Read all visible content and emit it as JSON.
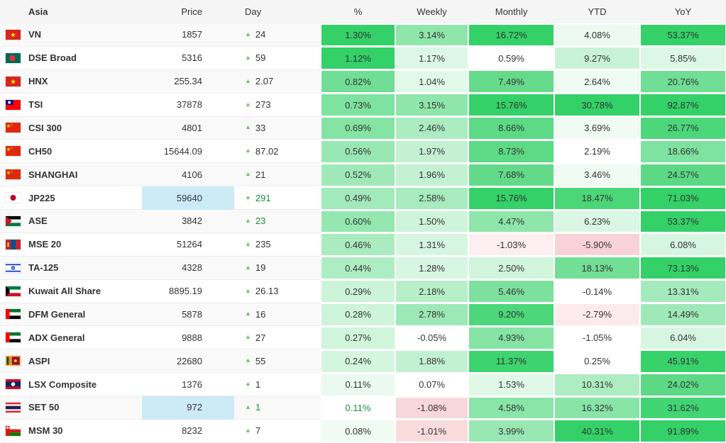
{
  "header": {
    "region": "Asia",
    "price": "Price",
    "day": "Day",
    "pct": "%",
    "weekly": "Weekly",
    "monthly": "Monthly",
    "ytd": "YTD",
    "yoy": "YoY"
  },
  "colors": {
    "accent_green_full": "#33d167",
    "accent_pink_full": "#f8d2d6",
    "flash_blue": "#cdeaf7",
    "flash_text_green": "#1e8e3e",
    "up_triangle": "#79c06f",
    "text": "#333333",
    "header_bg": "#f5f5f5",
    "stripe_bg": "#f9f9f9"
  },
  "icons": {
    "up_arrow": "triangle-up-icon"
  },
  "rows": [
    {
      "flag": "vietnam",
      "name": "VN",
      "price": "1857",
      "day": "24",
      "day_green": false,
      "price_flash": false,
      "pct": {
        "v": "1.30%",
        "bg": "#33d167",
        "green_text": false
      },
      "weekly": {
        "v": "3.14%",
        "bg": "#8fe6ab"
      },
      "monthly": {
        "v": "16.72%",
        "bg": "#33d167"
      },
      "ytd": {
        "v": "4.08%",
        "bg": "#ecfaf1"
      },
      "yoy": {
        "v": "53.37%",
        "bg": "#33d167"
      }
    },
    {
      "flag": "bangladesh",
      "name": "DSE Broad",
      "price": "5316",
      "day": "59",
      "day_green": false,
      "price_flash": false,
      "pct": {
        "v": "1.12%",
        "bg": "#33d167",
        "green_text": false
      },
      "weekly": {
        "v": "1.17%",
        "bg": "#dcf7e5"
      },
      "monthly": {
        "v": "0.59%",
        "bg": "#ffffff"
      },
      "ytd": {
        "v": "9.27%",
        "bg": "#c9f3d6"
      },
      "yoy": {
        "v": "5.85%",
        "bg": "#dcf7e5"
      }
    },
    {
      "flag": "vietnam",
      "name": "HNX",
      "price": "255.34",
      "day": "2.07",
      "day_green": false,
      "price_flash": false,
      "pct": {
        "v": "0.82%",
        "bg": "#71de96",
        "green_text": false
      },
      "weekly": {
        "v": "1.04%",
        "bg": "#e2f8e9"
      },
      "monthly": {
        "v": "7.49%",
        "bg": "#66da8b"
      },
      "ytd": {
        "v": "2.64%",
        "bg": "#eefbf3"
      },
      "yoy": {
        "v": "20.76%",
        "bg": "#70de95"
      }
    },
    {
      "flag": "taiwan",
      "name": "TSI",
      "price": "37878",
      "day": "273",
      "day_green": false,
      "price_flash": false,
      "pct": {
        "v": "0.73%",
        "bg": "#7ee2a0",
        "green_text": false
      },
      "weekly": {
        "v": "3.15%",
        "bg": "#8fe6ab"
      },
      "monthly": {
        "v": "15.76%",
        "bg": "#33d167"
      },
      "ytd": {
        "v": "30.78%",
        "bg": "#33d167"
      },
      "yoy": {
        "v": "92.87%",
        "bg": "#33d167"
      }
    },
    {
      "flag": "china",
      "name": "CSI 300",
      "price": "4801",
      "day": "33",
      "day_green": false,
      "price_flash": false,
      "pct": {
        "v": "0.69%",
        "bg": "#85e3a4",
        "green_text": false
      },
      "weekly": {
        "v": "2.46%",
        "bg": "#abecc1"
      },
      "monthly": {
        "v": "8.66%",
        "bg": "#5cda85"
      },
      "ytd": {
        "v": "3.69%",
        "bg": "#effbf3"
      },
      "yoy": {
        "v": "26.77%",
        "bg": "#4cd77a"
      }
    },
    {
      "flag": "china",
      "name": "CH50",
      "price": "15644.09",
      "day": "87.02",
      "day_green": false,
      "price_flash": false,
      "pct": {
        "v": "0.56%",
        "bg": "#99e8b3",
        "green_text": false
      },
      "weekly": {
        "v": "1.97%",
        "bg": "#c3f1d2"
      },
      "monthly": {
        "v": "8.73%",
        "bg": "#5cda85"
      },
      "ytd": {
        "v": "2.19%",
        "bg": "#ffffff"
      },
      "yoy": {
        "v": "18.66%",
        "bg": "#7ee2a0"
      }
    },
    {
      "flag": "china",
      "name": "SHANGHAI",
      "price": "4106",
      "day": "21",
      "day_green": false,
      "price_flash": false,
      "pct": {
        "v": "0.52%",
        "bg": "#9fe9b8",
        "green_text": false
      },
      "weekly": {
        "v": "1.96%",
        "bg": "#c3f1d2"
      },
      "monthly": {
        "v": "7.68%",
        "bg": "#63da89"
      },
      "ytd": {
        "v": "3.46%",
        "bg": "#effbf3"
      },
      "yoy": {
        "v": "24.57%",
        "bg": "#5bd984"
      }
    },
    {
      "flag": "japan",
      "name": "JP225",
      "price": "59640",
      "day": "291",
      "day_green": true,
      "price_flash": true,
      "pct": {
        "v": "0.49%",
        "bg": "#a3eabb",
        "green_text": false
      },
      "weekly": {
        "v": "2.58%",
        "bg": "#a7ebbe"
      },
      "monthly": {
        "v": "15.76%",
        "bg": "#33d167"
      },
      "ytd": {
        "v": "18.47%",
        "bg": "#4bd678"
      },
      "yoy": {
        "v": "71.03%",
        "bg": "#33d167"
      }
    },
    {
      "flag": "jordan",
      "name": "ASE",
      "price": "3842",
      "day": "23",
      "day_green": true,
      "price_flash": false,
      "pct": {
        "v": "0.60%",
        "bg": "#94e7af",
        "green_text": false
      },
      "weekly": {
        "v": "1.50%",
        "bg": "#cef4da"
      },
      "monthly": {
        "v": "4.47%",
        "bg": "#8fe6ab"
      },
      "ytd": {
        "v": "6.23%",
        "bg": "#d9f7e3"
      },
      "yoy": {
        "v": "53.37%",
        "bg": "#33d167"
      }
    },
    {
      "flag": "mongolia",
      "name": "MSE 20",
      "price": "51264",
      "day": "235",
      "day_green": false,
      "price_flash": false,
      "pct": {
        "v": "0.46%",
        "bg": "#aaecc0",
        "green_text": false
      },
      "weekly": {
        "v": "1.31%",
        "bg": "#d6f6e1"
      },
      "monthly": {
        "v": "-1.03%",
        "bg": "#fdeef0"
      },
      "ytd": {
        "v": "-5.90%",
        "bg": "#f8d2d6"
      },
      "yoy": {
        "v": "6.08%",
        "bg": "#d6f6e1"
      }
    },
    {
      "flag": "israel",
      "name": "TA-125",
      "price": "4328",
      "day": "19",
      "day_green": false,
      "price_flash": false,
      "pct": {
        "v": "0.44%",
        "bg": "#adedc2",
        "green_text": false
      },
      "weekly": {
        "v": "1.28%",
        "bg": "#d6f6e1"
      },
      "monthly": {
        "v": "2.50%",
        "bg": "#d0f5dc"
      },
      "ytd": {
        "v": "18.13%",
        "bg": "#72de96"
      },
      "yoy": {
        "v": "73.13%",
        "bg": "#33d167"
      }
    },
    {
      "flag": "kuwait",
      "name": "Kuwait All Share",
      "price": "8895.19",
      "day": "26.13",
      "day_green": false,
      "price_flash": false,
      "pct": {
        "v": "0.29%",
        "bg": "#ccf4d9",
        "green_text": false
      },
      "weekly": {
        "v": "2.18%",
        "bg": "#b6efc8"
      },
      "monthly": {
        "v": "5.46%",
        "bg": "#7ce19d"
      },
      "ytd": {
        "v": "-0.14%",
        "bg": "#ffffff"
      },
      "yoy": {
        "v": "13.31%",
        "bg": "#a5eabc"
      }
    },
    {
      "flag": "uae",
      "name": "DFM General",
      "price": "5878",
      "day": "16",
      "day_green": false,
      "price_flash": false,
      "pct": {
        "v": "0.28%",
        "bg": "#cef4da",
        "green_text": false
      },
      "weekly": {
        "v": "2.78%",
        "bg": "#9de9b6"
      },
      "monthly": {
        "v": "9.20%",
        "bg": "#4cd77a"
      },
      "ytd": {
        "v": "-2.79%",
        "bg": "#fceaec"
      },
      "yoy": {
        "v": "14.49%",
        "bg": "#9fe9b8"
      }
    },
    {
      "flag": "uae",
      "name": "ADX General",
      "price": "9888",
      "day": "27",
      "day_green": false,
      "price_flash": false,
      "pct": {
        "v": "0.27%",
        "bg": "#cff5db",
        "green_text": false
      },
      "weekly": {
        "v": "-0.05%",
        "bg": "#ffffff"
      },
      "monthly": {
        "v": "4.93%",
        "bg": "#85e3a4"
      },
      "ytd": {
        "v": "-1.05%",
        "bg": "#ffffff"
      },
      "yoy": {
        "v": "6.04%",
        "bg": "#d6f6e1"
      }
    },
    {
      "flag": "srilanka",
      "name": "ASPI",
      "price": "22680",
      "day": "55",
      "day_green": false,
      "price_flash": false,
      "pct": {
        "v": "0.24%",
        "bg": "#d4f6df",
        "green_text": false
      },
      "weekly": {
        "v": "1.88%",
        "bg": "#c2f1d1"
      },
      "monthly": {
        "v": "11.37%",
        "bg": "#3dd36e"
      },
      "ytd": {
        "v": "0.25%",
        "bg": "#ffffff"
      },
      "yoy": {
        "v": "45.91%",
        "bg": "#38d26b"
      }
    },
    {
      "flag": "laos",
      "name": "LSX Composite",
      "price": "1376",
      "day": "1",
      "day_green": false,
      "price_flash": false,
      "pct": {
        "v": "0.11%",
        "bg": "#ebfaf0",
        "green_text": false
      },
      "weekly": {
        "v": "0.07%",
        "bg": "#ffffff"
      },
      "monthly": {
        "v": "1.53%",
        "bg": "#dff8e7"
      },
      "ytd": {
        "v": "10.31%",
        "bg": "#aeecc2"
      },
      "yoy": {
        "v": "24.02%",
        "bg": "#5bd984"
      }
    },
    {
      "flag": "thailand",
      "name": "SET 50",
      "price": "972",
      "day": "1",
      "day_green": true,
      "price_flash": true,
      "pct": {
        "v": "0.11%",
        "bg": "#ffffff",
        "green_text": true
      },
      "weekly": {
        "v": "-1.08%",
        "bg": "#f8d7da"
      },
      "monthly": {
        "v": "4.58%",
        "bg": "#8ae5a8"
      },
      "ytd": {
        "v": "16.32%",
        "bg": "#88e4a7"
      },
      "yoy": {
        "v": "31.62%",
        "bg": "#41d472"
      }
    },
    {
      "flag": "oman",
      "name": "MSM 30",
      "price": "8232",
      "day": "7",
      "day_green": false,
      "price_flash": false,
      "pct": {
        "v": "0.08%",
        "bg": "#f0fbf4",
        "green_text": false
      },
      "weekly": {
        "v": "-1.01%",
        "bg": "#f9dbde"
      },
      "monthly": {
        "v": "3.99%",
        "bg": "#99e8b3"
      },
      "ytd": {
        "v": "40.31%",
        "bg": "#33d167"
      },
      "yoy": {
        "v": "91.89%",
        "bg": "#33d167"
      }
    }
  ]
}
